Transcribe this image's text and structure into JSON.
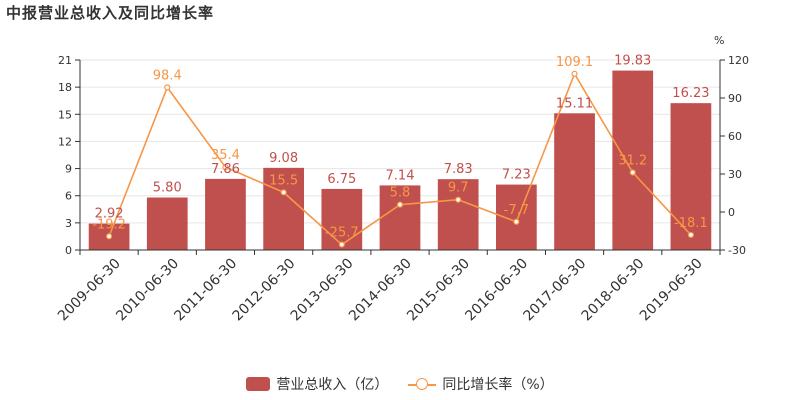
{
  "colors": {
    "bar": "#c0504d",
    "line": "#f79646",
    "axis": "#333333",
    "grid": "#e6e6e6"
  },
  "chart_data": {
    "type": "bar",
    "title": "中报营业总收入及同比增长率",
    "categories": [
      "2009-06-30",
      "2010-06-30",
      "2011-06-30",
      "2012-06-30",
      "2013-06-30",
      "2014-06-30",
      "2015-06-30",
      "2016-06-30",
      "2017-06-30",
      "2018-06-30",
      "2019-06-30"
    ],
    "series": [
      {
        "name": "营业总收入（亿）",
        "type": "bar",
        "axis": "left",
        "values": [
          2.92,
          5.8,
          7.86,
          9.08,
          6.75,
          7.14,
          7.83,
          7.23,
          15.11,
          19.83,
          16.23
        ],
        "labels": [
          "2.92",
          "5.80",
          "7.86",
          "9.08",
          "6.75",
          "7.14",
          "7.83",
          "7.23",
          "15.11",
          "19.83",
          "16.23"
        ]
      },
      {
        "name": "同比增长率（%）",
        "type": "line",
        "axis": "right",
        "values": [
          -19.2,
          98.4,
          35.4,
          15.5,
          -25.7,
          5.8,
          9.7,
          -7.7,
          109.1,
          31.2,
          -18.1
        ],
        "labels": [
          "-19.2",
          "98.4",
          "35.4",
          "15.5",
          "-25.7",
          "5.8",
          "9.7",
          "-7.7",
          "109.1",
          "31.2",
          "-18.1"
        ]
      }
    ],
    "y_left": {
      "min": 0,
      "max": 21,
      "ticks": [
        0,
        3,
        6,
        9,
        12,
        15,
        18,
        21
      ]
    },
    "y_right": {
      "min": -30,
      "max": 120,
      "ticks": [
        -30,
        0,
        30,
        60,
        90,
        120
      ],
      "unit": "%"
    },
    "legend_position": "bottom"
  }
}
